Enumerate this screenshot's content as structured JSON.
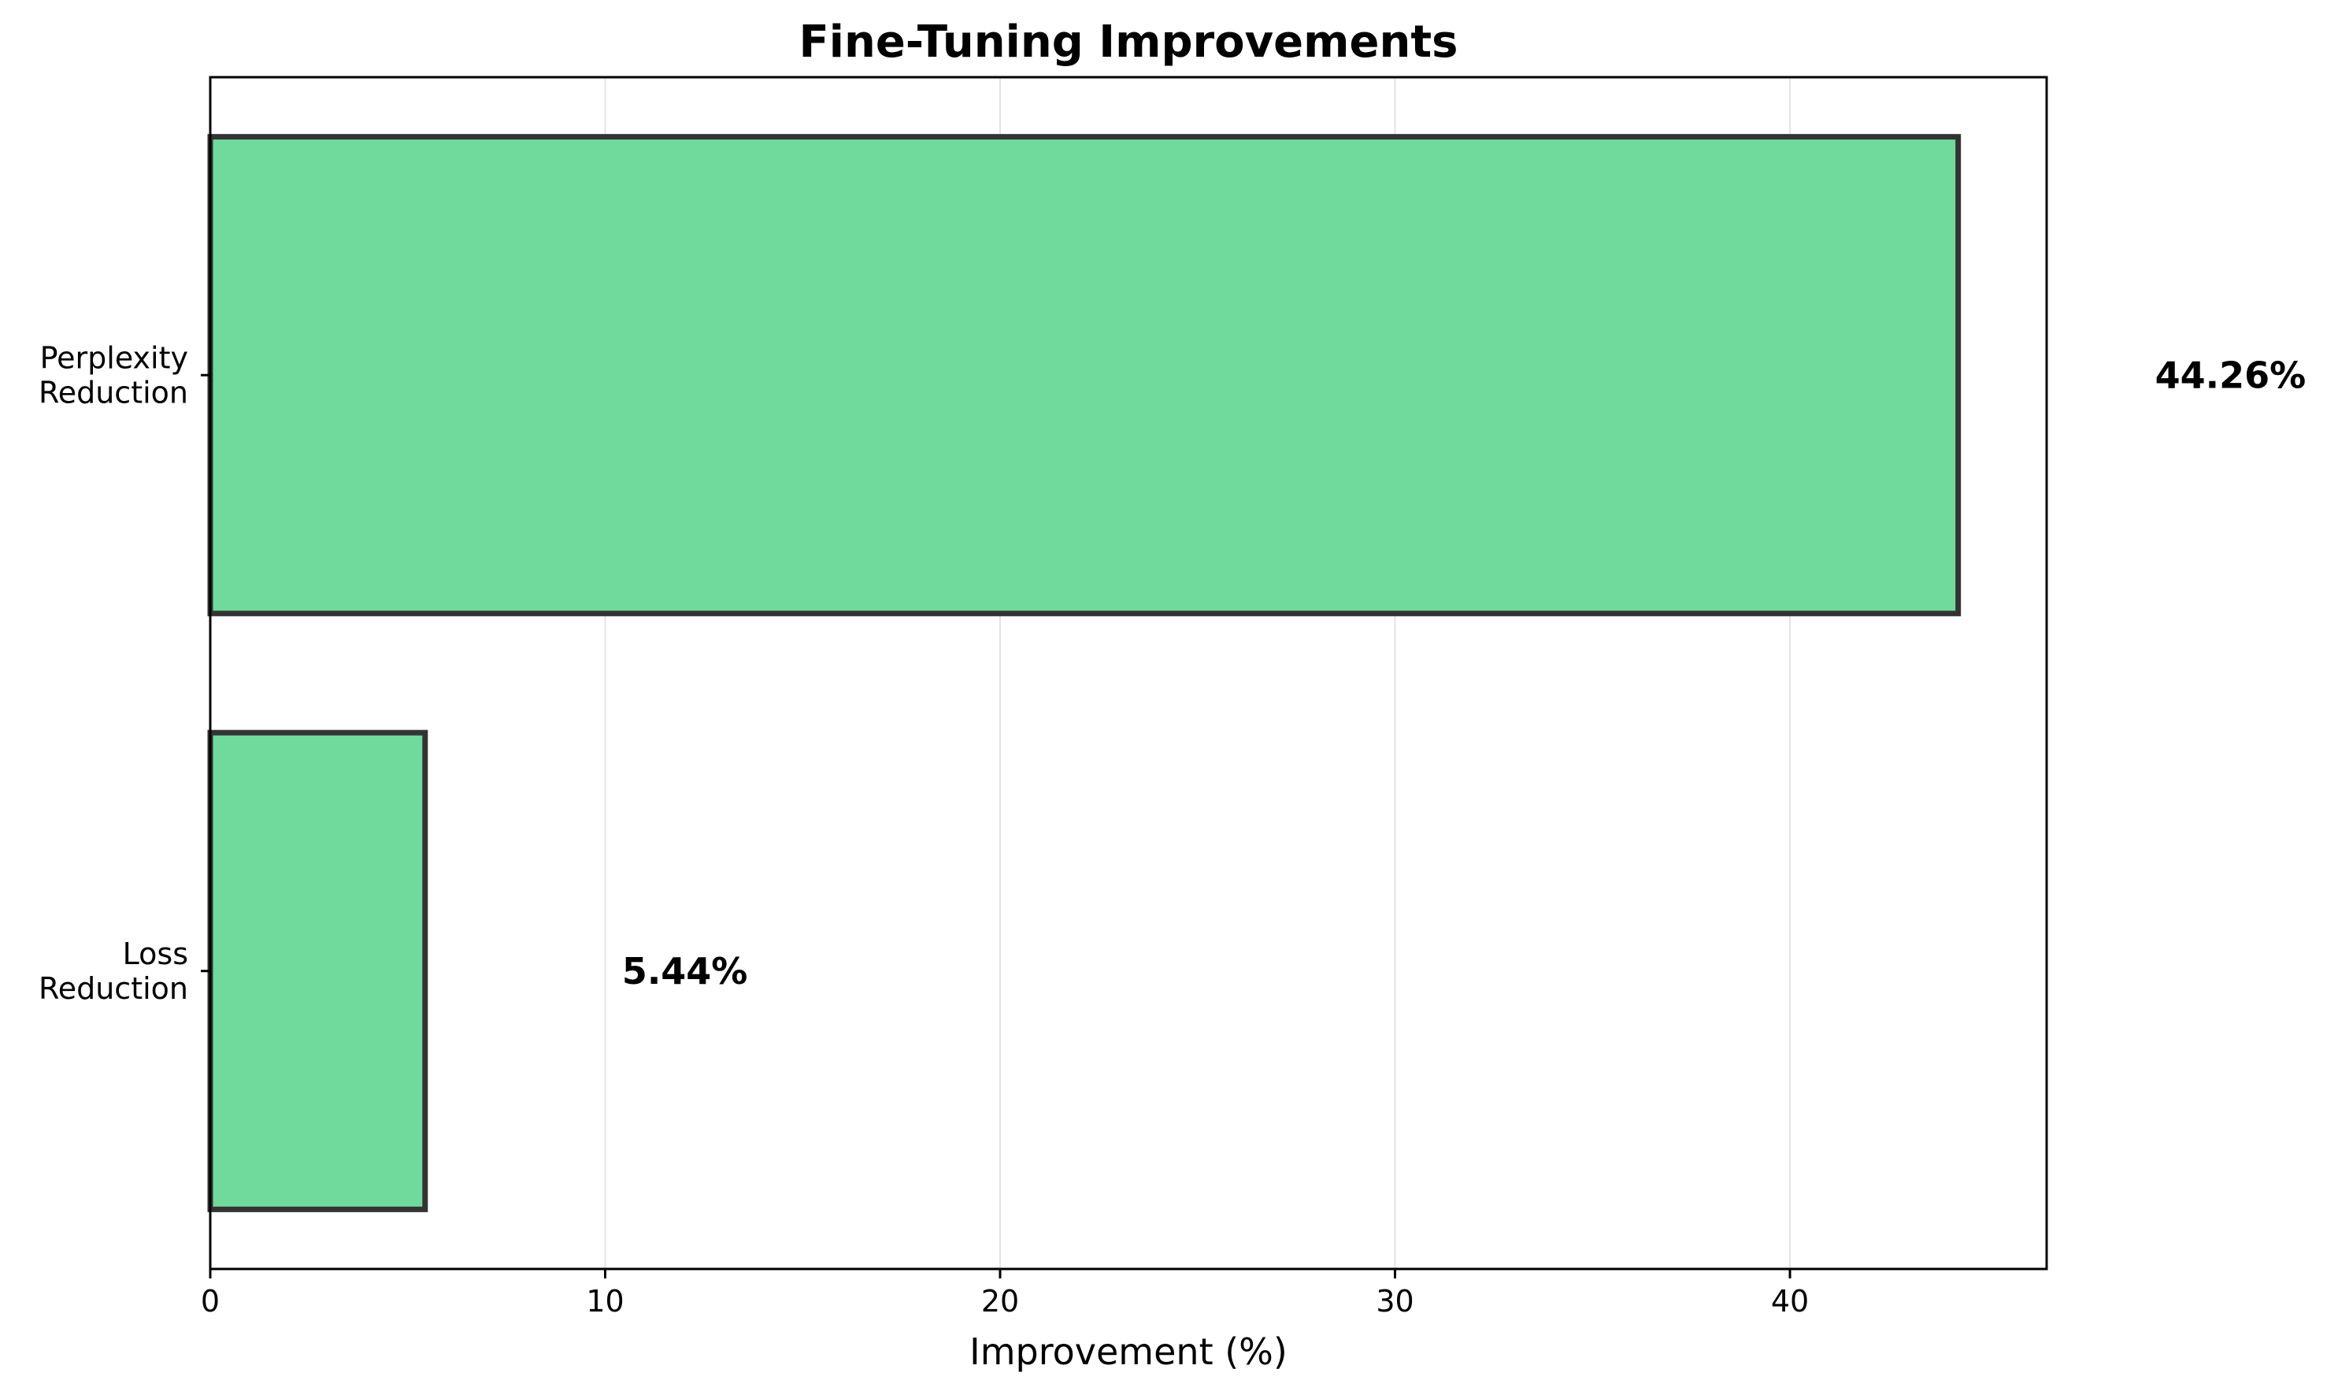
{
  "chart_data": {
    "type": "bar",
    "orientation": "horizontal",
    "title": "Fine-Tuning Improvements",
    "xlabel": "Improvement (%)",
    "ylabel": "",
    "categories": [
      [
        "Perplexity",
        "Reduction"
      ],
      [
        "Loss",
        "Reduction"
      ]
    ],
    "values": [
      44.26,
      5.44
    ],
    "value_labels": [
      "44.26%",
      "5.44%"
    ],
    "xlim": [
      0,
      46.5
    ],
    "xticks": [
      0,
      10,
      20,
      30,
      40
    ],
    "xtick_labels": [
      "0",
      "10",
      "20",
      "30",
      "40"
    ],
    "grid": "x",
    "legend": "none",
    "colors": {
      "bar_fill": "#6fda9c",
      "bar_edge": "#333333",
      "grid": "#e3e3e3",
      "axis": "#000000"
    }
  }
}
